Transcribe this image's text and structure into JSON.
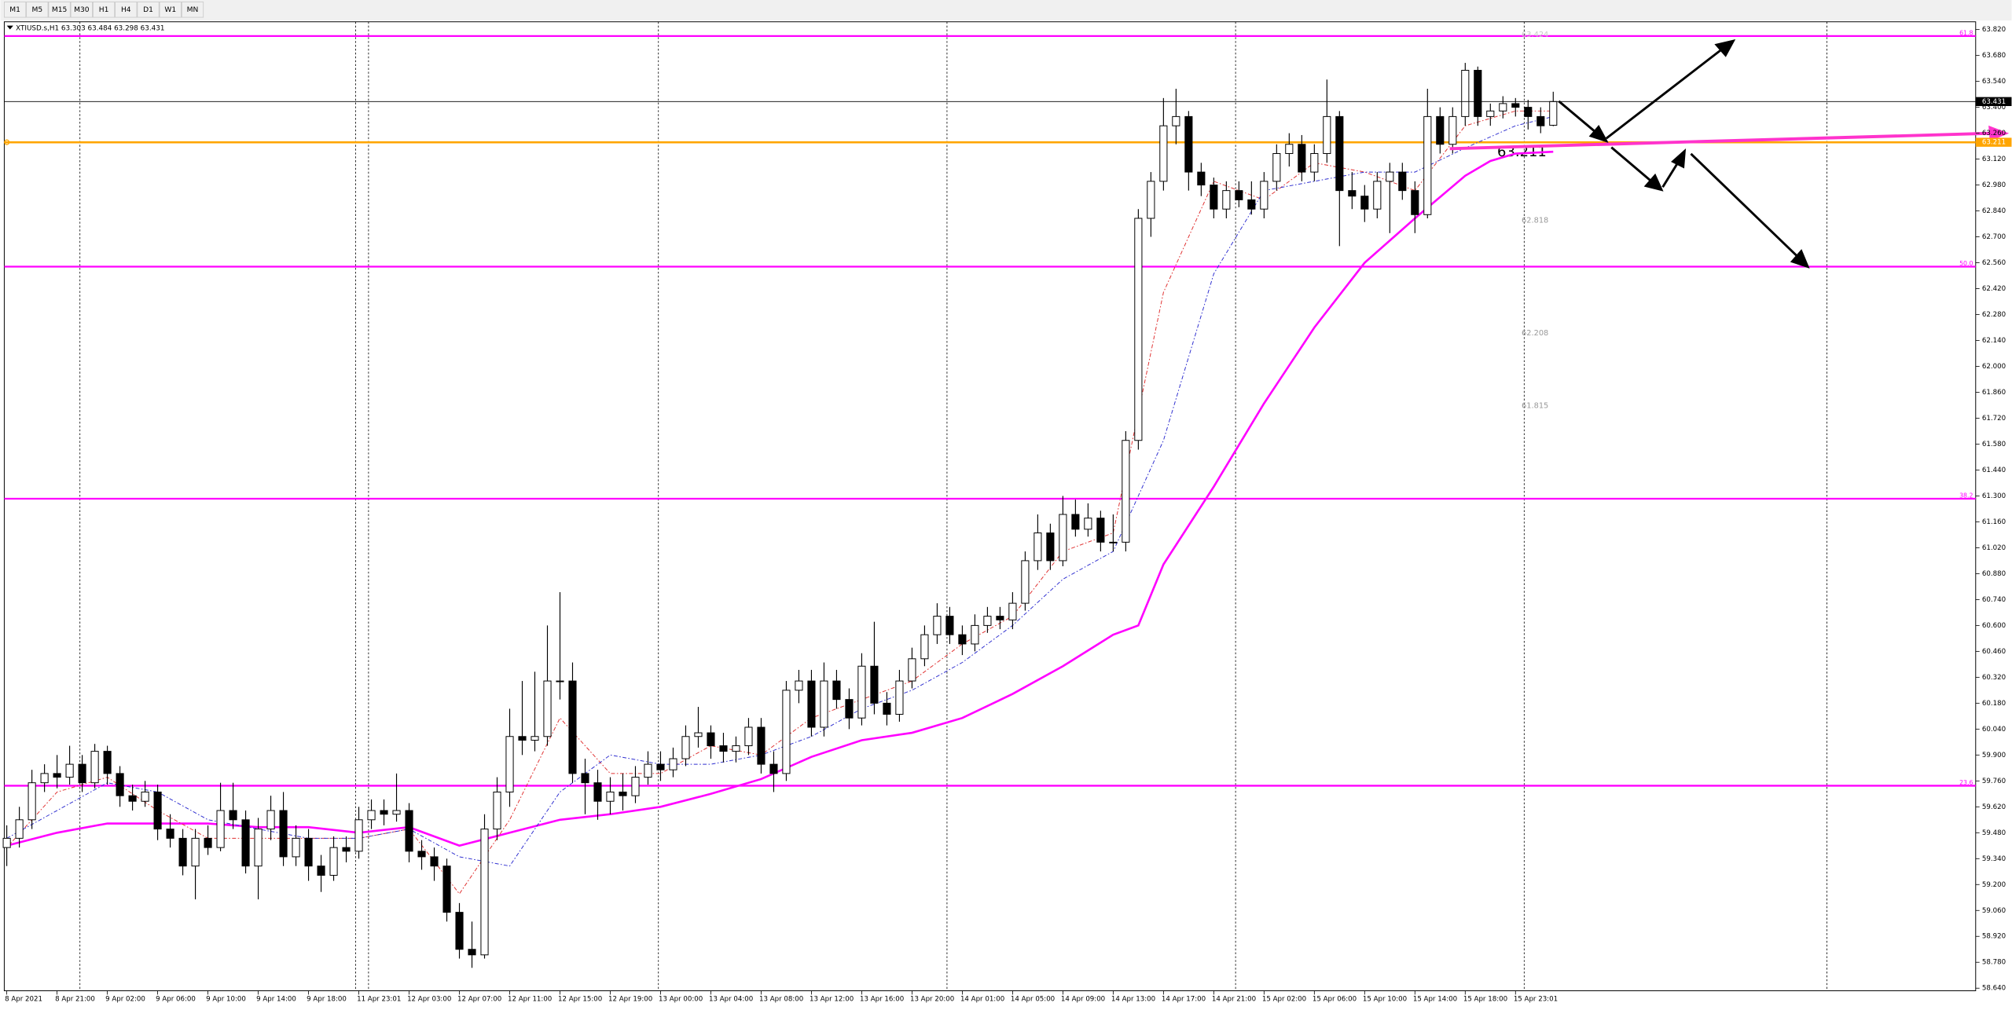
{
  "toolbar": [
    "M1",
    "M5",
    "M15",
    "M30",
    "H1",
    "H4",
    "D1",
    "W1",
    "MN"
  ],
  "chart_data": {
    "type": "candlestick",
    "title": "XTIUSD.s,H1  63.303 63.484 63.298 63.431",
    "xlim": [
      -0.2,
      156.6
    ],
    "ylim": [
      58.626,
      63.862
    ],
    "grid": false,
    "yticks": [
      {
        "value": 63.82,
        "label": "63.820"
      },
      {
        "value": 63.68,
        "label": "63.680"
      },
      {
        "value": 63.54,
        "label": "63.540"
      },
      {
        "value": 63.4,
        "label": "63.400"
      },
      {
        "value": 63.26,
        "label": "63.260"
      },
      {
        "value": 63.12,
        "label": "63.120"
      },
      {
        "value": 62.98,
        "label": "62.980"
      },
      {
        "value": 62.84,
        "label": "62.840"
      },
      {
        "value": 62.7,
        "label": "62.700"
      },
      {
        "value": 62.56,
        "label": "62.560"
      },
      {
        "value": 62.42,
        "label": "62.420"
      },
      {
        "value": 62.28,
        "label": "62.280"
      },
      {
        "value": 62.14,
        "label": "62.140"
      },
      {
        "value": 62.0,
        "label": "62.000"
      },
      {
        "value": 61.86,
        "label": "61.860"
      },
      {
        "value": 61.72,
        "label": "61.720"
      },
      {
        "value": 61.58,
        "label": "61.580"
      },
      {
        "value": 61.44,
        "label": "61.440"
      },
      {
        "value": 61.3,
        "label": "61.300"
      },
      {
        "value": 61.16,
        "label": "61.160"
      },
      {
        "value": 61.02,
        "label": "61.020"
      },
      {
        "value": 60.88,
        "label": "60.880"
      },
      {
        "value": 60.74,
        "label": "60.740"
      },
      {
        "value": 60.6,
        "label": "60.600"
      },
      {
        "value": 60.46,
        "label": "60.460"
      },
      {
        "value": 60.32,
        "label": "60.320"
      },
      {
        "value": 60.18,
        "label": "60.180"
      },
      {
        "value": 60.04,
        "label": "60.040"
      },
      {
        "value": 59.9,
        "label": "59.900"
      },
      {
        "value": 59.76,
        "label": "59.760"
      },
      {
        "value": 59.62,
        "label": "59.620"
      },
      {
        "value": 59.48,
        "label": "59.480"
      },
      {
        "value": 59.34,
        "label": "59.340"
      },
      {
        "value": 59.2,
        "label": "59.200"
      },
      {
        "value": 59.06,
        "label": "59.060"
      },
      {
        "value": 58.92,
        "label": "58.920"
      },
      {
        "value": 58.78,
        "label": "58.780"
      },
      {
        "value": 58.64,
        "label": "58.640"
      }
    ],
    "xticks": [
      {
        "value": 0,
        "label": "8 Apr 2021"
      },
      {
        "value": 4,
        "label": "8 Apr 21:00"
      },
      {
        "value": 8,
        "label": "9 Apr 02:00"
      },
      {
        "value": 12,
        "label": "9 Apr 06:00"
      },
      {
        "value": 16,
        "label": "9 Apr 10:00"
      },
      {
        "value": 20,
        "label": "9 Apr 14:00"
      },
      {
        "value": 24,
        "label": "9 Apr 18:00"
      },
      {
        "value": 28,
        "label": "11 Apr 23:01"
      },
      {
        "value": 32,
        "label": "12 Apr 03:00"
      },
      {
        "value": 36,
        "label": "12 Apr 07:00"
      },
      {
        "value": 40,
        "label": "12 Apr 11:00"
      },
      {
        "value": 44,
        "label": "12 Apr 15:00"
      },
      {
        "value": 48,
        "label": "12 Apr 19:00"
      },
      {
        "value": 52,
        "label": "13 Apr 00:00"
      },
      {
        "value": 56,
        "label": "13 Apr 04:00"
      },
      {
        "value": 60,
        "label": "13 Apr 08:00"
      },
      {
        "value": 64,
        "label": "13 Apr 12:00"
      },
      {
        "value": 68,
        "label": "13 Apr 16:00"
      },
      {
        "value": 72,
        "label": "13 Apr 20:00"
      },
      {
        "value": 76,
        "label": "14 Apr 01:00"
      },
      {
        "value": 80,
        "label": "14 Apr 05:00"
      },
      {
        "value": 84,
        "label": "14 Apr 09:00"
      },
      {
        "value": 88,
        "label": "14 Apr 13:00"
      },
      {
        "value": 92,
        "label": "14 Apr 17:00"
      },
      {
        "value": 96,
        "label": "14 Apr 21:00"
      },
      {
        "value": 100,
        "label": "15 Apr 02:00"
      },
      {
        "value": 104,
        "label": "15 Apr 06:00"
      },
      {
        "value": 108,
        "label": "15 Apr 10:00"
      },
      {
        "value": 112,
        "label": "15 Apr 14:00"
      },
      {
        "value": 116,
        "label": "15 Apr 18:00"
      },
      {
        "value": 120,
        "label": "15 Apr 23:01"
      }
    ],
    "candles": [
      [
        59.4,
        59.52,
        59.3,
        59.45
      ],
      [
        59.45,
        59.62,
        59.4,
        59.55
      ],
      [
        59.55,
        59.82,
        59.5,
        59.75
      ],
      [
        59.75,
        59.85,
        59.7,
        59.8
      ],
      [
        59.8,
        59.9,
        59.72,
        59.78
      ],
      [
        59.78,
        59.95,
        59.74,
        59.85
      ],
      [
        59.85,
        59.9,
        59.7,
        59.75
      ],
      [
        59.75,
        59.96,
        59.72,
        59.92
      ],
      [
        59.92,
        59.95,
        59.74,
        59.8
      ],
      [
        59.8,
        59.84,
        59.62,
        59.68
      ],
      [
        59.68,
        59.74,
        59.6,
        59.65
      ],
      [
        59.65,
        59.76,
        59.62,
        59.7
      ],
      [
        59.7,
        59.74,
        59.44,
        59.5
      ],
      [
        59.5,
        59.58,
        59.4,
        59.45
      ],
      [
        59.45,
        59.5,
        59.25,
        59.3
      ],
      [
        59.3,
        59.5,
        59.12,
        59.45
      ],
      [
        59.45,
        59.52,
        59.36,
        59.4
      ],
      [
        59.4,
        59.75,
        59.38,
        59.6
      ],
      [
        59.6,
        59.75,
        59.5,
        59.55
      ],
      [
        59.55,
        59.6,
        59.26,
        59.3
      ],
      [
        59.3,
        59.56,
        59.12,
        59.5
      ],
      [
        59.5,
        59.68,
        59.44,
        59.6
      ],
      [
        59.6,
        59.7,
        59.3,
        59.35
      ],
      [
        59.35,
        59.52,
        59.3,
        59.45
      ],
      [
        59.45,
        59.5,
        59.22,
        59.3
      ],
      [
        59.3,
        59.36,
        59.16,
        59.25
      ],
      [
        59.25,
        59.46,
        59.22,
        59.4
      ],
      [
        59.4,
        59.46,
        59.32,
        59.38
      ],
      [
        59.38,
        59.62,
        59.34,
        59.55
      ],
      [
        59.55,
        59.66,
        59.5,
        59.6
      ],
      [
        59.6,
        59.66,
        59.52,
        59.58
      ],
      [
        59.58,
        59.8,
        59.54,
        59.6
      ],
      [
        59.6,
        59.64,
        59.32,
        59.38
      ],
      [
        59.38,
        59.44,
        59.28,
        59.35
      ],
      [
        59.35,
        59.4,
        59.22,
        59.3
      ],
      [
        59.3,
        59.34,
        59.0,
        59.05
      ],
      [
        59.05,
        59.1,
        58.8,
        58.85
      ],
      [
        58.85,
        59.0,
        58.75,
        58.82
      ],
      [
        58.82,
        59.58,
        58.8,
        59.5
      ],
      [
        59.5,
        59.78,
        59.44,
        59.7
      ],
      [
        59.7,
        60.15,
        59.62,
        60.0
      ],
      [
        60.0,
        60.3,
        59.9,
        59.98
      ],
      [
        59.98,
        60.35,
        59.92,
        60.0
      ],
      [
        60.0,
        60.6,
        59.95,
        60.3
      ],
      [
        60.3,
        60.78,
        60.2,
        60.3
      ],
      [
        60.3,
        60.4,
        59.75,
        59.8
      ],
      [
        59.8,
        59.88,
        59.58,
        59.75
      ],
      [
        59.75,
        59.82,
        59.55,
        59.65
      ],
      [
        59.65,
        59.78,
        59.58,
        59.7
      ],
      [
        59.7,
        59.8,
        59.6,
        59.68
      ],
      [
        59.68,
        59.84,
        59.64,
        59.78
      ],
      [
        59.78,
        59.92,
        59.74,
        59.85
      ],
      [
        59.85,
        59.92,
        59.76,
        59.82
      ],
      [
        59.82,
        59.94,
        59.78,
        59.88
      ],
      [
        59.88,
        60.06,
        59.84,
        60.0
      ],
      [
        60.0,
        60.16,
        59.94,
        60.02
      ],
      [
        60.02,
        60.06,
        59.88,
        59.95
      ],
      [
        59.95,
        60.02,
        59.86,
        59.92
      ],
      [
        59.92,
        60.0,
        59.86,
        59.95
      ],
      [
        59.95,
        60.1,
        59.9,
        60.05
      ],
      [
        60.05,
        60.1,
        59.8,
        59.85
      ],
      [
        59.85,
        59.92,
        59.7,
        59.8
      ],
      [
        59.8,
        60.3,
        59.76,
        60.25
      ],
      [
        60.25,
        60.36,
        60.18,
        60.3
      ],
      [
        60.3,
        60.36,
        60.0,
        60.05
      ],
      [
        60.05,
        60.4,
        60.0,
        60.3
      ],
      [
        60.3,
        60.36,
        60.15,
        60.2
      ],
      [
        60.2,
        60.26,
        60.04,
        60.1
      ],
      [
        60.1,
        60.45,
        60.06,
        60.38
      ],
      [
        60.38,
        60.62,
        60.12,
        60.18
      ],
      [
        60.18,
        60.24,
        60.06,
        60.12
      ],
      [
        60.12,
        60.36,
        60.08,
        60.3
      ],
      [
        60.3,
        60.48,
        60.26,
        60.42
      ],
      [
        60.42,
        60.6,
        60.38,
        60.55
      ],
      [
        60.55,
        60.72,
        60.5,
        60.65
      ],
      [
        60.65,
        60.7,
        60.5,
        60.55
      ],
      [
        60.55,
        60.6,
        60.44,
        60.5
      ],
      [
        60.5,
        60.66,
        60.46,
        60.6
      ],
      [
        60.6,
        60.7,
        60.56,
        60.65
      ],
      [
        60.65,
        60.7,
        60.58,
        60.63
      ],
      [
        60.63,
        60.78,
        60.58,
        60.72
      ],
      [
        60.72,
        61.0,
        60.68,
        60.95
      ],
      [
        60.95,
        61.2,
        60.9,
        61.1
      ],
      [
        61.1,
        61.15,
        60.9,
        60.95
      ],
      [
        60.95,
        61.3,
        60.92,
        61.2
      ],
      [
        61.2,
        61.28,
        61.08,
        61.12
      ],
      [
        61.12,
        61.26,
        61.08,
        61.18
      ],
      [
        61.18,
        61.22,
        61.0,
        61.05
      ],
      [
        61.05,
        61.2,
        61.0,
        61.05
      ],
      [
        61.05,
        61.65,
        61.0,
        61.6
      ],
      [
        61.6,
        62.85,
        61.55,
        62.8
      ],
      [
        62.8,
        63.05,
        62.7,
        63.0
      ],
      [
        63.0,
        63.45,
        62.95,
        63.3
      ],
      [
        63.3,
        63.5,
        63.2,
        63.35
      ],
      [
        63.35,
        63.38,
        62.95,
        63.05
      ],
      [
        63.05,
        63.1,
        62.92,
        62.98
      ],
      [
        62.98,
        63.02,
        62.8,
        62.85
      ],
      [
        62.85,
        63.0,
        62.8,
        62.95
      ],
      [
        62.95,
        63.0,
        62.86,
        62.9
      ],
      [
        62.9,
        63.0,
        62.82,
        62.85
      ],
      [
        62.85,
        63.05,
        62.8,
        63.0
      ],
      [
        63.0,
        63.2,
        62.95,
        63.15
      ],
      [
        63.15,
        63.26,
        63.08,
        63.2
      ],
      [
        63.2,
        63.25,
        63.0,
        63.05
      ],
      [
        63.05,
        63.2,
        63.0,
        63.15
      ],
      [
        63.15,
        63.55,
        63.1,
        63.35
      ],
      [
        63.35,
        63.38,
        62.65,
        62.95
      ],
      [
        62.95,
        63.05,
        62.85,
        62.92
      ],
      [
        62.92,
        62.98,
        62.78,
        62.85
      ],
      [
        62.85,
        63.05,
        62.8,
        63.0
      ],
      [
        63.0,
        63.1,
        62.72,
        63.05
      ],
      [
        63.05,
        63.1,
        62.9,
        62.95
      ],
      [
        62.95,
        63.0,
        62.72,
        62.82
      ],
      [
        62.82,
        63.5,
        62.8,
        63.35
      ],
      [
        63.35,
        63.4,
        63.15,
        63.2
      ],
      [
        63.2,
        63.4,
        63.15,
        63.35
      ],
      [
        63.35,
        63.64,
        63.3,
        63.6
      ],
      [
        63.6,
        63.62,
        63.3,
        63.35
      ],
      [
        63.35,
        63.42,
        63.3,
        63.38
      ],
      [
        63.38,
        63.46,
        63.34,
        63.42
      ],
      [
        63.42,
        63.45,
        63.35,
        63.4
      ],
      [
        63.4,
        63.44,
        63.28,
        63.35
      ],
      [
        63.35,
        63.4,
        63.26,
        63.3
      ],
      [
        63.303,
        63.484,
        63.298,
        63.431
      ]
    ],
    "series": [
      {
        "color": "#ff00ff",
        "width": 1.6,
        "x": [
          0,
          4,
          8,
          12,
          16,
          20,
          24,
          28,
          32,
          36,
          40,
          44,
          48,
          52,
          56,
          60,
          64,
          68,
          72,
          76,
          80,
          84,
          88,
          90,
          92,
          96,
          100,
          104,
          108,
          112,
          116,
          118,
          120,
          123
        ],
        "values": [
          59.41,
          59.48,
          59.53,
          59.53,
          59.53,
          59.51,
          59.51,
          59.48,
          59.51,
          59.41,
          59.48,
          59.55,
          59.58,
          59.62,
          59.69,
          59.77,
          59.89,
          59.98,
          60.02,
          60.1,
          60.23,
          60.38,
          60.55,
          60.6,
          60.93,
          61.35,
          61.8,
          62.21,
          62.56,
          62.8,
          63.03,
          63.11,
          63.15,
          63.16
        ]
      },
      {
        "color": "#e03030",
        "width": 0.6,
        "dash": true,
        "x": [
          0,
          4,
          8,
          12,
          16,
          20,
          24,
          28,
          32,
          36,
          40,
          44,
          48,
          52,
          56,
          60,
          64,
          68,
          72,
          76,
          80,
          84,
          88,
          92,
          96,
          100,
          104,
          108,
          112,
          116,
          120,
          123
        ],
        "values": [
          59.4,
          59.7,
          59.78,
          59.6,
          59.45,
          59.45,
          59.45,
          59.45,
          59.5,
          59.15,
          59.55,
          60.1,
          59.8,
          59.8,
          59.95,
          59.9,
          60.1,
          60.2,
          60.3,
          60.5,
          60.65,
          61.0,
          61.1,
          62.4,
          63.0,
          62.9,
          63.1,
          63.05,
          62.95,
          63.3,
          63.38,
          63.38
        ]
      },
      {
        "color": "#3030d0",
        "width": 0.6,
        "dash": true,
        "x": [
          0,
          4,
          8,
          12,
          16,
          20,
          24,
          28,
          32,
          36,
          40,
          44,
          48,
          52,
          56,
          60,
          64,
          68,
          72,
          76,
          80,
          84,
          88,
          92,
          96,
          100,
          104,
          108,
          112,
          116,
          120,
          123
        ],
        "values": [
          59.45,
          59.6,
          59.75,
          59.7,
          59.55,
          59.5,
          59.45,
          59.45,
          59.5,
          59.35,
          59.3,
          59.7,
          59.9,
          59.85,
          59.85,
          59.9,
          60.0,
          60.15,
          60.25,
          60.4,
          60.6,
          60.85,
          61.0,
          61.6,
          62.5,
          62.95,
          63.0,
          63.05,
          63.05,
          63.18,
          63.3,
          63.35
        ]
      }
    ],
    "levels": [
      {
        "value": 63.785,
        "label": "61.8"
      },
      {
        "value": 62.539,
        "label": "50.0"
      },
      {
        "value": 61.285,
        "label": "38.2"
      },
      {
        "value": 59.734,
        "label": "23.6"
      }
    ],
    "level_color": "#ff00ff",
    "support": {
      "value": 63.211,
      "label": "63.211",
      "color": "#ffa500"
    },
    "current_price": {
      "value": 63.431,
      "label": "63.431"
    },
    "price_notes": [
      {
        "value": 62.818,
        "label": "62.818"
      },
      {
        "value": 62.208,
        "label": "62.208"
      },
      {
        "value": 61.815,
        "label": "61.815"
      }
    ],
    "top_note": "63.424"
  }
}
